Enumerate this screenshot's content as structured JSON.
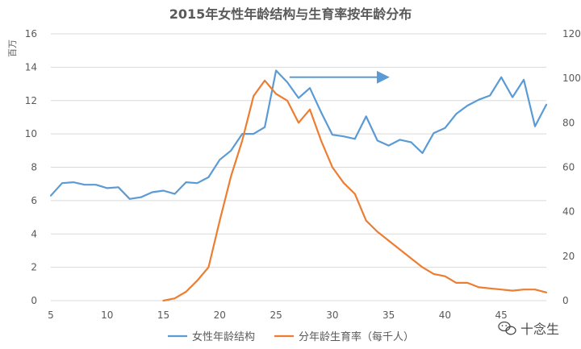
{
  "chart_data": {
    "type": "line",
    "title": "2015年女性年龄结构与生育率按年龄分布",
    "ylabel": "百万",
    "xlim": [
      5,
      49
    ],
    "ylim": [
      0,
      16
    ],
    "y2lim": [
      0,
      120
    ],
    "x_ticks": [
      5,
      10,
      15,
      20,
      25,
      30,
      35,
      40,
      45
    ],
    "y_ticks": [
      0,
      2,
      4,
      6,
      8,
      10,
      12,
      14,
      16
    ],
    "y2_ticks": [
      0,
      20,
      40,
      60,
      80,
      100,
      120
    ],
    "gridlines": "horizontal",
    "legend_position": "bottom",
    "series": [
      {
        "name": "女性年龄结构",
        "axis": "left",
        "color": "#5b9bd5",
        "x": [
          5,
          6,
          7,
          8,
          9,
          10,
          11,
          12,
          13,
          14,
          15,
          16,
          17,
          18,
          19,
          20,
          21,
          22,
          23,
          24,
          25,
          26,
          27,
          28,
          29,
          30,
          31,
          32,
          33,
          34,
          35,
          36,
          37,
          38,
          39,
          40,
          41,
          42,
          43,
          44,
          45,
          46,
          47,
          48,
          49
        ],
        "values": [
          6.3,
          7.05,
          7.1,
          6.95,
          6.95,
          6.75,
          6.8,
          6.1,
          6.2,
          6.5,
          6.6,
          6.4,
          7.1,
          7.05,
          7.4,
          8.45,
          9.0,
          10.0,
          10.0,
          10.4,
          13.8,
          13.1,
          12.15,
          12.75,
          11.3,
          9.95,
          9.85,
          9.7,
          11.05,
          9.6,
          9.3,
          9.65,
          9.5,
          8.85,
          10.05,
          10.35,
          11.2,
          11.7,
          12.05,
          12.3,
          13.4,
          12.2,
          13.25,
          10.45,
          11.75
        ]
      },
      {
        "name": "分年龄生育率（每千人）",
        "axis": "right",
        "color": "#ed7d31",
        "x": [
          15,
          16,
          17,
          18,
          19,
          20,
          21,
          22,
          23,
          24,
          25,
          26,
          27,
          28,
          29,
          30,
          31,
          32,
          33,
          34,
          35,
          36,
          37,
          38,
          39,
          40,
          41,
          42,
          43,
          44,
          45,
          46,
          47,
          48,
          49
        ],
        "values": [
          0,
          1,
          4,
          9,
          15,
          36,
          56,
          72,
          92,
          99,
          93,
          90,
          80,
          86,
          72,
          60,
          53,
          48,
          36,
          31,
          27,
          23,
          19,
          15,
          12,
          11,
          8,
          8,
          6,
          5.5,
          5,
          4.5,
          5,
          5,
          3.7
        ]
      }
    ]
  },
  "annotation": {
    "type": "arrow",
    "color": "#5b9bd5",
    "x_from": 26.2,
    "x_to": 34.8,
    "y": 13.4
  },
  "watermark": {
    "text": "十念生",
    "icon": "wechat-icon"
  }
}
